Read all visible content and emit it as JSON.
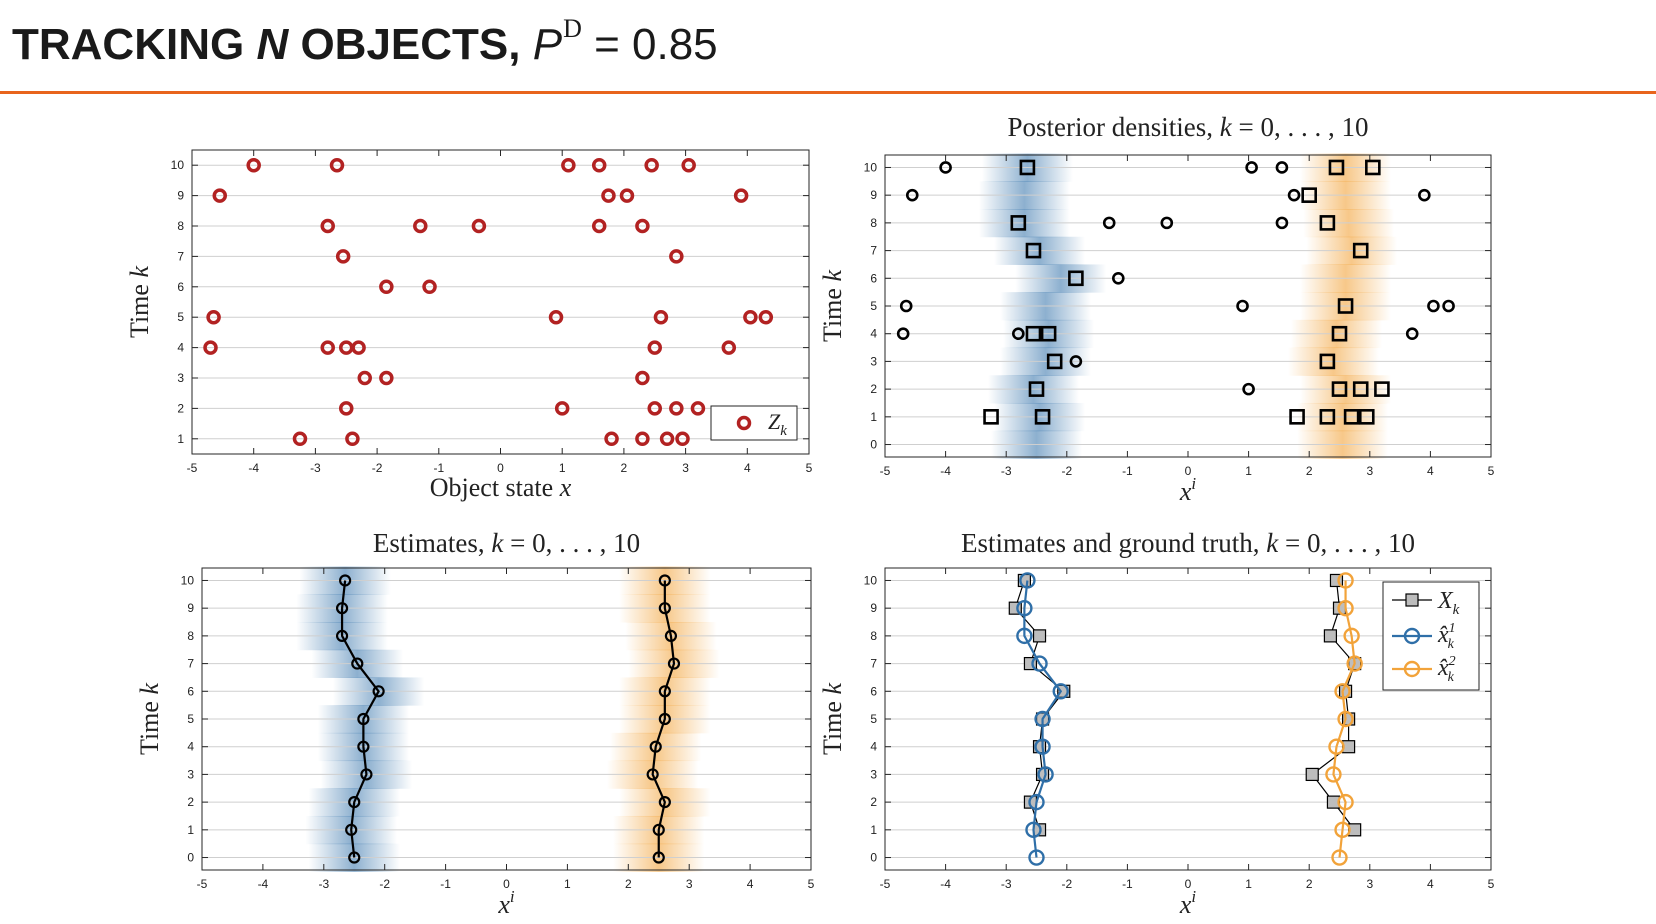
{
  "slide": {
    "title_pre": "TRACKING ",
    "title_n": "N",
    "title_mid": " OBJECTS, ",
    "title_p": "P",
    "title_sup": "D",
    "title_val": " = 0.85",
    "rule_color": "#e8641c"
  },
  "colors": {
    "measurement": "#b22222",
    "object1": "#2f6fa8",
    "object2": "#f2a33a",
    "ground_truth_fill": "#bdbdbd",
    "estimate": "#000000"
  },
  "chart_data": [
    {
      "id": "measurements",
      "type": "scatter",
      "title": "",
      "xlabel": "Object state x",
      "ylabel": "Time k",
      "xlim": [
        -5,
        5
      ],
      "ylim": [
        0.5,
        10.5
      ],
      "xticks": [
        -5,
        -4,
        -3,
        -2,
        -1,
        0,
        1,
        2,
        3,
        4,
        5
      ],
      "yticks": [
        1,
        2,
        3,
        4,
        5,
        6,
        7,
        8,
        9,
        10
      ],
      "legend": {
        "label": "Z_k",
        "placement": "lower-right"
      },
      "points": [
        {
          "k": 10,
          "x": [
            -4.0,
            -2.65,
            1.1,
            1.6,
            2.45,
            3.05
          ]
        },
        {
          "k": 9,
          "x": [
            -4.55,
            1.75,
            2.05,
            3.9
          ]
        },
        {
          "k": 8,
          "x": [
            -2.8,
            -1.3,
            -0.35,
            1.6,
            2.3
          ]
        },
        {
          "k": 7,
          "x": [
            -2.55,
            2.85
          ]
        },
        {
          "k": 6,
          "x": [
            -1.85,
            -1.15
          ]
        },
        {
          "k": 5,
          "x": [
            -4.65,
            0.9,
            2.6,
            4.05,
            4.3
          ]
        },
        {
          "k": 4,
          "x": [
            -4.7,
            -2.8,
            -2.5,
            -2.3,
            2.5,
            3.7
          ]
        },
        {
          "k": 3,
          "x": [
            -2.2,
            -1.85,
            2.3
          ]
        },
        {
          "k": 2,
          "x": [
            -2.5,
            1.0,
            2.5,
            2.85,
            3.2
          ]
        },
        {
          "k": 1,
          "x": [
            -3.25,
            -2.4,
            1.8,
            2.3,
            2.7,
            2.95
          ]
        }
      ]
    },
    {
      "id": "posterior",
      "type": "scatter",
      "title": "Posterior densities, k = 0, . . . , 10",
      "xlabel": "x^i",
      "ylabel": "Time k",
      "xlim": [
        -5,
        5
      ],
      "ylim": [
        -0.45,
        10.45
      ],
      "xticks": [
        -5,
        -4,
        -3,
        -2,
        -1,
        0,
        1,
        2,
        3,
        4,
        5
      ],
      "yticks": [
        0,
        1,
        2,
        3,
        4,
        5,
        6,
        7,
        8,
        9,
        10
      ],
      "clutter": [
        {
          "k": 10,
          "x": [
            -4.0,
            1.05,
            1.55
          ]
        },
        {
          "k": 9,
          "x": [
            -4.55,
            1.75,
            3.9
          ]
        },
        {
          "k": 8,
          "x": [
            -1.3,
            -0.35,
            1.55
          ]
        },
        {
          "k": 6,
          "x": [
            -1.15
          ]
        },
        {
          "k": 5,
          "x": [
            -4.65,
            0.9,
            4.05,
            4.3
          ]
        },
        {
          "k": 4,
          "x": [
            -4.7,
            -2.8,
            3.7
          ]
        },
        {
          "k": 3,
          "x": [
            -1.85
          ]
        },
        {
          "k": 2,
          "x": [
            1.0
          ]
        }
      ],
      "detections": [
        {
          "k": 10,
          "x": [
            -2.65,
            2.45,
            3.05
          ]
        },
        {
          "k": 9,
          "x": [
            2.0
          ]
        },
        {
          "k": 8,
          "x": [
            -2.8,
            2.3
          ]
        },
        {
          "k": 7,
          "x": [
            -2.55,
            2.85
          ]
        },
        {
          "k": 6,
          "x": [
            -1.85
          ]
        },
        {
          "k": 5,
          "x": [
            2.6
          ]
        },
        {
          "k": 4,
          "x": [
            -2.55,
            -2.3,
            2.5
          ]
        },
        {
          "k": 3,
          "x": [
            -2.2,
            2.3
          ]
        },
        {
          "k": 2,
          "x": [
            -2.5,
            2.5,
            2.85,
            3.2
          ]
        },
        {
          "k": 1,
          "x": [
            -3.25,
            -2.4,
            1.8,
            2.3,
            2.7,
            2.95
          ]
        }
      ],
      "densities": {
        "object1": [
          -2.5,
          -2.45,
          -2.55,
          -2.35,
          -2.3,
          -2.35,
          -2.1,
          -2.45,
          -2.7,
          -2.7,
          -2.65
        ],
        "object2": [
          2.55,
          2.55,
          2.6,
          2.4,
          2.45,
          2.6,
          2.6,
          2.7,
          2.65,
          2.6,
          2.6
        ]
      }
    },
    {
      "id": "estimates",
      "type": "line",
      "title": "Estimates, k = 0, . . . , 10",
      "xlabel": "x^i",
      "ylabel": "Time k",
      "xlim": [
        -5,
        5
      ],
      "ylim": [
        -0.45,
        10.45
      ],
      "xticks": [
        -5,
        -4,
        -3,
        -2,
        -1,
        0,
        1,
        2,
        3,
        4,
        5
      ],
      "yticks": [
        0,
        1,
        2,
        3,
        4,
        5,
        6,
        7,
        8,
        9,
        10
      ],
      "k": [
        0,
        1,
        2,
        3,
        4,
        5,
        6,
        7,
        8,
        9,
        10
      ],
      "series": [
        {
          "values": [
            -2.5,
            -2.55,
            -2.5,
            -2.3,
            -2.35,
            -2.35,
            -2.1,
            -2.45,
            -2.7,
            -2.7,
            -2.65
          ]
        },
        {
          "values": [
            2.5,
            2.5,
            2.6,
            2.4,
            2.45,
            2.6,
            2.6,
            2.75,
            2.7,
            2.6,
            2.6
          ]
        }
      ]
    },
    {
      "id": "ground_truth",
      "type": "line",
      "title": "Estimates and ground truth, k = 0, . . . , 10",
      "xlabel": "x^i",
      "ylabel": "Time k",
      "xlim": [
        -5,
        5
      ],
      "ylim": [
        -0.45,
        10.45
      ],
      "xticks": [
        -5,
        -4,
        -3,
        -2,
        -1,
        0,
        1,
        2,
        3,
        4,
        5
      ],
      "yticks": [
        0,
        1,
        2,
        3,
        4,
        5,
        6,
        7,
        8,
        9,
        10
      ],
      "legend": {
        "labels": [
          "X_k",
          "x̂_k^1",
          "x̂_k^2"
        ],
        "placement": "top-right"
      },
      "k_truth": [
        1,
        2,
        3,
        4,
        5,
        6,
        7,
        8,
        9,
        10
      ],
      "truth": {
        "object1": [
          -2.45,
          -2.6,
          -2.4,
          -2.45,
          -2.4,
          -2.05,
          -2.6,
          -2.45,
          -2.85,
          -2.7
        ],
        "object2": [
          2.75,
          2.4,
          2.05,
          2.65,
          2.65,
          2.6,
          2.75,
          2.35,
          2.5,
          2.45
        ]
      },
      "k_est": [
        0,
        1,
        2,
        3,
        4,
        5,
        6,
        7,
        8,
        9,
        10
      ],
      "series": [
        {
          "name": "x̂_k^1",
          "values": [
            -2.5,
            -2.55,
            -2.5,
            -2.35,
            -2.4,
            -2.4,
            -2.1,
            -2.45,
            -2.7,
            -2.7,
            -2.65
          ]
        },
        {
          "name": "x̂_k^2",
          "values": [
            2.5,
            2.55,
            2.6,
            2.4,
            2.45,
            2.6,
            2.55,
            2.75,
            2.7,
            2.6,
            2.6
          ]
        }
      ]
    }
  ]
}
